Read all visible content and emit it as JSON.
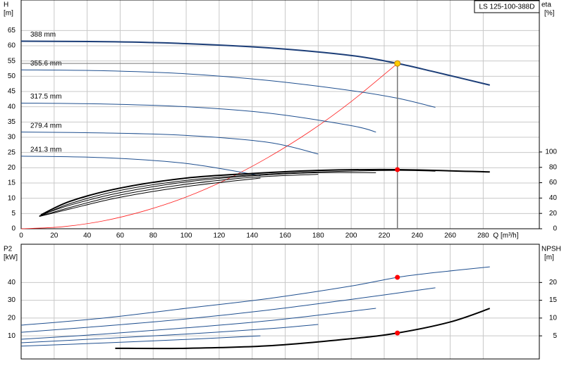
{
  "chart_data": [
    {
      "type": "line",
      "title": "LS 125-100-388D",
      "ylabel": "H",
      "yunit": "[m]",
      "y2label": "eta",
      "y2unit": "[%]",
      "xlabel": "Q [m³/h]",
      "xlim": [
        0,
        314
      ],
      "ylim": [
        0,
        75
      ],
      "y2lim": [
        0,
        298
      ],
      "xticks": [
        0,
        20,
        40,
        60,
        80,
        100,
        120,
        140,
        160,
        180,
        200,
        220,
        240,
        260,
        280
      ],
      "yticks": [
        0,
        5,
        10,
        15,
        20,
        25,
        30,
        35,
        40,
        45,
        50,
        55,
        60,
        65
      ],
      "y2ticks": [
        0,
        20,
        40,
        60,
        80,
        100
      ],
      "show_xtick_labels": true,
      "grid": true,
      "series": [
        {
          "name": "388 mm",
          "color": "#1c3e78",
          "highlight": true,
          "x": [
            0,
            57,
            100,
            150,
            200,
            228,
            250,
            284
          ],
          "values": [
            61.5,
            61.3,
            60.7,
            59.3,
            56.8,
            54.2,
            51.5,
            47.1
          ]
        },
        {
          "name": "355.6 mm",
          "color": "#1f4f8f",
          "x": [
            0,
            50,
            100,
            150,
            200,
            228,
            251
          ],
          "values": [
            52.1,
            51.8,
            50.8,
            48.6,
            45.3,
            42.8,
            39.8
          ]
        },
        {
          "name": "317.5 mm",
          "color": "#1f4f8f",
          "x": [
            0,
            50,
            100,
            150,
            200,
            215
          ],
          "values": [
            41.2,
            40.9,
            40.0,
            37.9,
            33.8,
            31.7
          ]
        },
        {
          "name": "279.4 mm",
          "color": "#1f4f8f",
          "x": [
            0,
            50,
            100,
            150,
            180
          ],
          "values": [
            31.7,
            31.4,
            30.6,
            28.3,
            24.5
          ]
        },
        {
          "name": "241.3 mm",
          "color": "#1f4f8f",
          "x": [
            0,
            50,
            100,
            145
          ],
          "values": [
            23.8,
            23.3,
            21.4,
            17.4
          ]
        },
        {
          "axis": "y2",
          "color": "#000000",
          "highlight": true,
          "x": [
            12,
            30,
            60,
            100,
            140,
            180,
            228,
            284
          ],
          "values": [
            18,
            36,
            53,
            66,
            72,
            76,
            77,
            74
          ]
        },
        {
          "axis": "y2",
          "color": "#000000",
          "x": [
            12,
            30,
            60,
            100,
            140,
            180,
            228,
            251
          ],
          "values": [
            17,
            33,
            50,
            63,
            70,
            74,
            76,
            75
          ]
        },
        {
          "axis": "y2",
          "color": "#000000",
          "x": [
            11,
            30,
            60,
            100,
            140,
            180,
            215
          ],
          "values": [
            17,
            31,
            47,
            61,
            69,
            73,
            73
          ]
        },
        {
          "axis": "y2",
          "color": "#000000",
          "x": [
            11,
            30,
            60,
            100,
            140,
            180
          ],
          "values": [
            16,
            28,
            44,
            58,
            67,
            71
          ]
        },
        {
          "axis": "y2",
          "color": "#000000",
          "x": [
            11,
            30,
            60,
            100,
            145
          ],
          "values": [
            16,
            26,
            41,
            55,
            66
          ]
        }
      ],
      "system_curve": {
        "color": "#ff2020",
        "x": [
          0,
          25,
          50,
          75,
          100,
          125,
          150,
          175,
          200,
          228
        ],
        "values": [
          0,
          0.65,
          2.6,
          5.9,
          10.4,
          16.3,
          23.5,
          31.9,
          41.7,
          54.2
        ]
      },
      "operating_point": {
        "x": 228,
        "y": 54.2,
        "y2": 77,
        "color": "#ffcc00",
        "y2_color": "#ff0000"
      }
    },
    {
      "type": "line",
      "ylabel": "P2",
      "yunit": "[kW]",
      "y2label": "NPSH",
      "y2unit": "[m]",
      "xlim": [
        0,
        314
      ],
      "ylim": [
        -3,
        61.5
      ],
      "y2lim": [
        -1.5,
        30.75
      ],
      "xticks": [
        0,
        20,
        40,
        60,
        80,
        100,
        120,
        140,
        160,
        180,
        200,
        220,
        240,
        260,
        280
      ],
      "yticks": [
        10,
        20,
        30,
        40
      ],
      "y2ticks": [
        5,
        10,
        15,
        20
      ],
      "show_xtick_labels": false,
      "grid": true,
      "series": [
        {
          "color": "#1f4f8f",
          "x": [
            0,
            50,
            100,
            150,
            200,
            228,
            250,
            284
          ],
          "values": [
            16,
            20,
            25.5,
            31,
            38,
            42.9,
            45.5,
            48.8
          ]
        },
        {
          "color": "#1f4f8f",
          "x": [
            0,
            50,
            100,
            150,
            200,
            251
          ],
          "values": [
            12,
            15.5,
            19.5,
            24.5,
            30.5,
            37
          ]
        },
        {
          "color": "#1f4f8f",
          "x": [
            0,
            50,
            100,
            150,
            215
          ],
          "values": [
            8.1,
            11,
            14.5,
            18.5,
            25.5
          ]
        },
        {
          "color": "#1f4f8f",
          "x": [
            0,
            50,
            100,
            150,
            180
          ],
          "values": [
            6.1,
            8.5,
            11,
            14,
            16.4
          ]
        },
        {
          "color": "#1f4f8f",
          "x": [
            0,
            50,
            100,
            145
          ],
          "values": [
            4.2,
            6,
            8,
            10
          ]
        },
        {
          "axis": "y2",
          "color": "#000000",
          "highlight": true,
          "x": [
            57,
            100,
            150,
            200,
            228,
            260,
            284
          ],
          "values": [
            1.5,
            1.5,
            2.2,
            4.2,
            5.8,
            8.9,
            12.7
          ]
        }
      ],
      "operating_point": {
        "x": 228,
        "y": 42.9,
        "y2": 5.8,
        "color": "#ff0000",
        "y2_color": "#ff0000"
      }
    }
  ]
}
